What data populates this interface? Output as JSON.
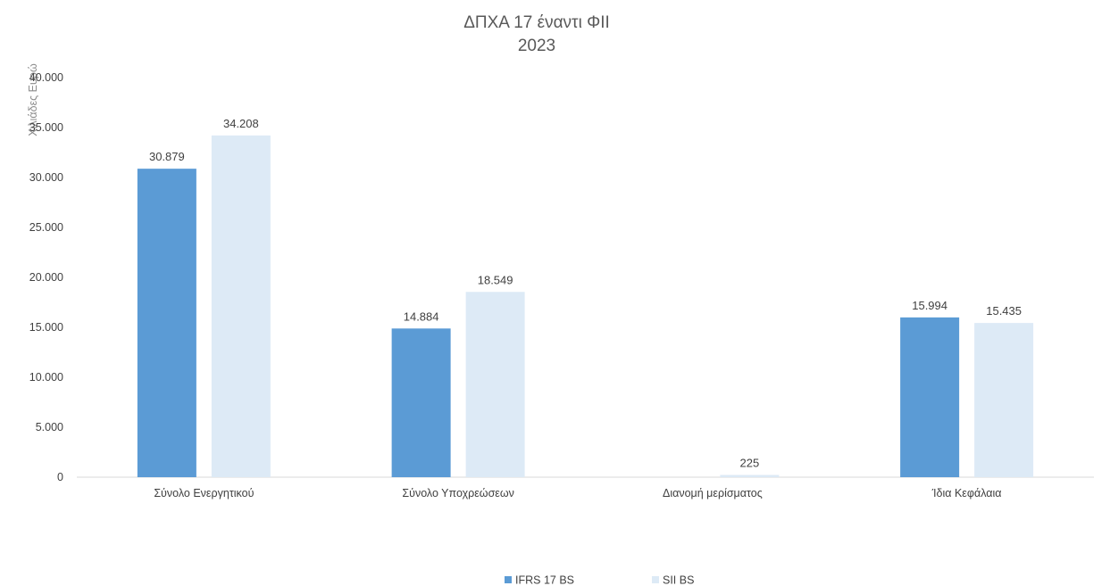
{
  "chart_data": {
    "type": "bar",
    "title": "ΔΠΧΑ 17 έναντι ΦΙΙ",
    "subtitle": "2023",
    "ylabel": "Χιλιάδες Ευρώ",
    "xlabel": "",
    "ylim": [
      0,
      40000
    ],
    "yticks": [
      0,
      5000,
      10000,
      15000,
      20000,
      25000,
      30000,
      35000,
      40000
    ],
    "ytick_labels": [
      "0",
      "5.000",
      "10.000",
      "15.000",
      "20.000",
      "25.000",
      "30.000",
      "35.000",
      "40.000"
    ],
    "grid": false,
    "legend_position": "bottom",
    "categories": [
      "Σύνολο Ενεργητικού",
      "Σύνολο Υποχρεώσεων",
      "Διανομή μερίσματος",
      "Ίδια Κεφάλαια"
    ],
    "series": [
      {
        "name": "IFRS 17 BS",
        "color": "#5b9bd5",
        "values": [
          30879,
          14884,
          null,
          15994
        ],
        "labels": [
          "30.879",
          "14.884",
          "",
          "15.994"
        ]
      },
      {
        "name": "SII BS",
        "color": "#ddeaf6",
        "values": [
          34208,
          18549,
          225,
          15435
        ],
        "labels": [
          "34.208",
          "18.549",
          "225",
          "15.435"
        ]
      }
    ]
  }
}
